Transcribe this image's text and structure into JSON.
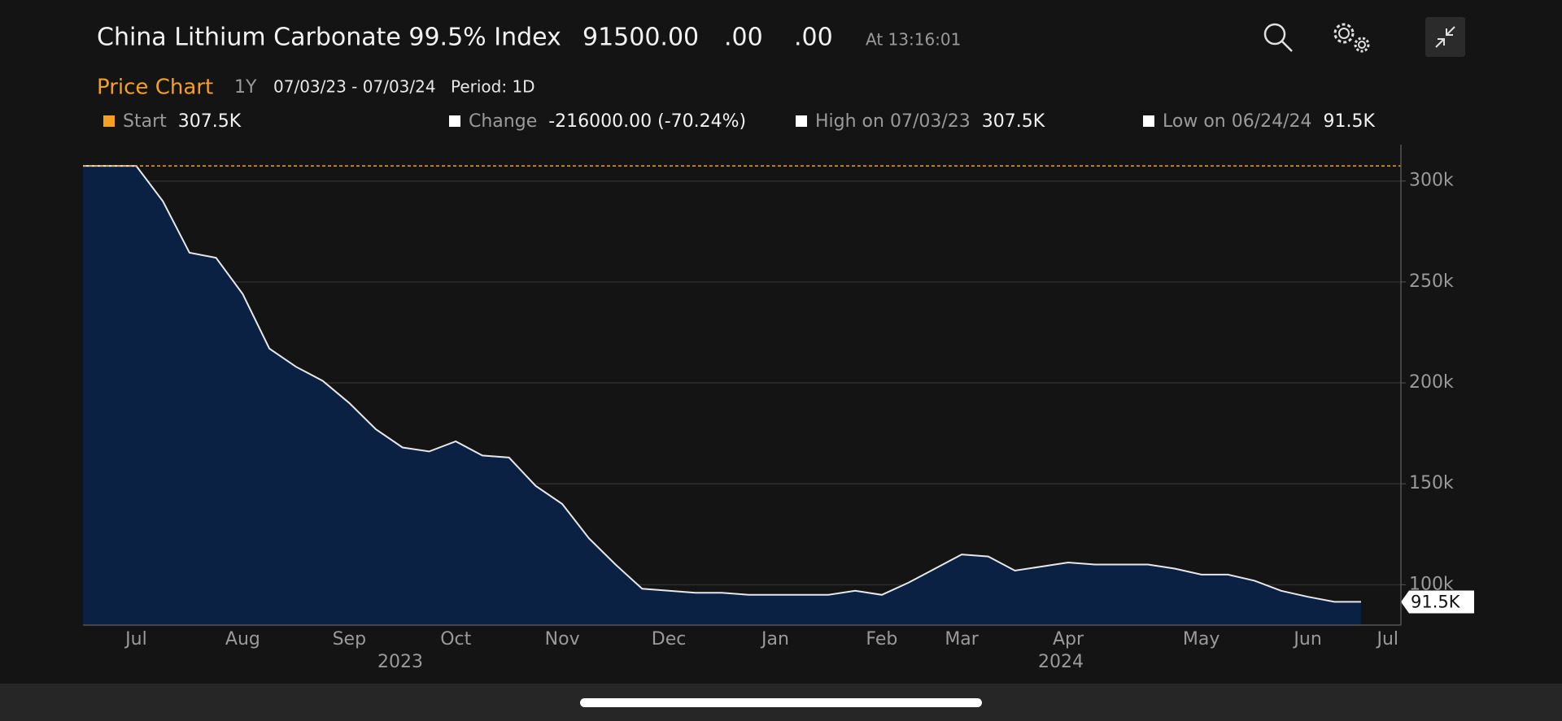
{
  "header": {
    "title": "China Lithium Carbonate 99.5% Index",
    "price": "91500.00",
    "change": ".00",
    "change_pct": ".00",
    "time": "At 13:16:01"
  },
  "toolbar": {
    "label": "Price Chart",
    "range": "1Y",
    "dates": "07/03/23 - 07/03/24",
    "period": "Period: 1D"
  },
  "summary": [
    {
      "label": "Start",
      "value": "307.5K",
      "color": "#f5a023"
    },
    {
      "label": "Change",
      "value": "-216000.00 (-70.24%)",
      "color": "#ffffff"
    },
    {
      "label": "High on 07/03/23",
      "value": "307.5K",
      "color": "#ffffff"
    },
    {
      "label": "Low on 06/24/24",
      "value": "91.5K",
      "color": "#ffffff"
    }
  ],
  "chart_data": {
    "type": "area",
    "categories": [
      null,
      null,
      "Jul",
      null,
      null,
      null,
      "Aug",
      null,
      null,
      null,
      "Sep",
      null,
      null,
      null,
      "Oct",
      null,
      null,
      null,
      "Nov",
      null,
      null,
      null,
      "Dec",
      null,
      null,
      null,
      "Jan",
      null,
      null,
      null,
      "Feb",
      null,
      null,
      "Mar",
      null,
      null,
      null,
      "Apr",
      null,
      null,
      null,
      null,
      "May",
      null,
      null,
      null,
      "Jun",
      null,
      null,
      "Jul"
    ],
    "year_labels": [
      "2023",
      "2024"
    ],
    "values": [
      307.5,
      307.5,
      307.5,
      290,
      264.5,
      262,
      244,
      217,
      208,
      201,
      190,
      177,
      168,
      166,
      171,
      164,
      163,
      149,
      140,
      123,
      110,
      98,
      97,
      96,
      96,
      95,
      95,
      95,
      95,
      97,
      95,
      101,
      108,
      115,
      114,
      107,
      109,
      111,
      110,
      110,
      110,
      108,
      105,
      105,
      102,
      97,
      94,
      91.5,
      91.5,
      null
    ],
    "color": "#0b2143",
    "line_color": "#e8e8e8",
    "ylim": [
      80,
      318
    ],
    "yticks": [
      {
        "value": 100,
        "label": "100k"
      },
      {
        "value": 150,
        "label": "150k"
      },
      {
        "value": 200,
        "label": "200k"
      },
      {
        "value": 250,
        "label": "250k"
      },
      {
        "value": 300,
        "label": "300k"
      }
    ],
    "grid": true,
    "reference_line": {
      "value": 307.5,
      "color": "#f5a023"
    },
    "last_label": "91.5K"
  }
}
